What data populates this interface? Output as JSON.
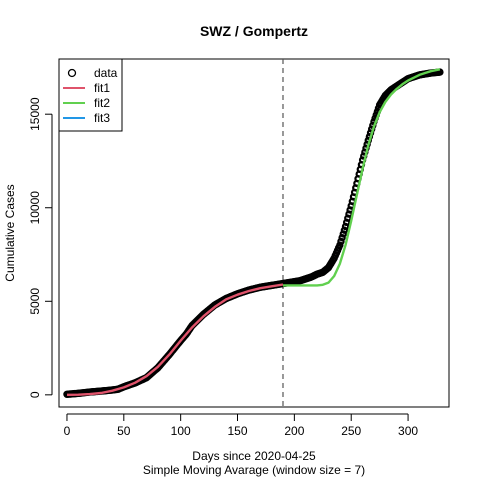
{
  "chart_data": {
    "type": "line",
    "title": "SWZ / Gompertz",
    "xlabel": "Days since 2020-04-25",
    "subtitle": "Simple Moving Avarage (window size = 7)",
    "ylabel": "Cumulative Cases",
    "xlim": [
      -7,
      336
    ],
    "ylim": [
      -650,
      17950
    ],
    "x_ticks": [
      0,
      50,
      100,
      150,
      200,
      250,
      300
    ],
    "y_ticks": [
      0,
      5000,
      10000,
      15000
    ],
    "vline_x": 190,
    "legend_position": "top-left",
    "series": [
      {
        "name": "data",
        "style": "points",
        "color": "#000000",
        "x": [
          0,
          10,
          20,
          30,
          40,
          45,
          50,
          60,
          70,
          80,
          90,
          100,
          105,
          110,
          115,
          120,
          130,
          140,
          150,
          160,
          170,
          180,
          190,
          200,
          205,
          210,
          215,
          220,
          225,
          230,
          235,
          240,
          245,
          250,
          255,
          260,
          265,
          270,
          275,
          280,
          285,
          290,
          295,
          300,
          305,
          310,
          315,
          320,
          328
        ],
        "values": [
          30,
          80,
          150,
          200,
          260,
          300,
          430,
          640,
          920,
          1450,
          2150,
          2900,
          3250,
          3700,
          4000,
          4300,
          4800,
          5150,
          5400,
          5600,
          5750,
          5850,
          5950,
          6050,
          6100,
          6200,
          6300,
          6450,
          6550,
          6800,
          7300,
          8000,
          9000,
          10100,
          11300,
          12550,
          13600,
          14600,
          15500,
          16000,
          16300,
          16500,
          16700,
          16900,
          17000,
          17100,
          17150,
          17200,
          17250
        ]
      },
      {
        "name": "fit1",
        "style": "line",
        "color": "#DF536B",
        "x": [
          0,
          10,
          20,
          30,
          40,
          50,
          60,
          70,
          80,
          90,
          100,
          110,
          120,
          130,
          140,
          150,
          160,
          170,
          180,
          190
        ],
        "values": [
          0,
          10,
          40,
          100,
          220,
          400,
          650,
          1000,
          1500,
          2150,
          2900,
          3600,
          4200,
          4700,
          5100,
          5350,
          5550,
          5700,
          5800,
          5900
        ]
      },
      {
        "name": "fit2",
        "style": "line",
        "color": "#61D04F",
        "x": [
          190,
          200,
          210,
          220,
          225,
          230,
          235,
          240,
          245,
          250,
          255,
          260,
          265,
          270,
          275,
          280,
          285,
          290,
          295,
          300,
          305,
          310,
          315,
          320,
          328
        ],
        "values": [
          5850,
          5850,
          5850,
          5850,
          5880,
          6000,
          6350,
          7000,
          8000,
          9300,
          10700,
          12100,
          13350,
          14350,
          15100,
          15650,
          16050,
          16350,
          16600,
          16800,
          16950,
          17100,
          17200,
          17300,
          17400
        ]
      },
      {
        "name": "fit3",
        "style": "line",
        "color": "#2297E6",
        "x": [],
        "values": []
      }
    ]
  }
}
